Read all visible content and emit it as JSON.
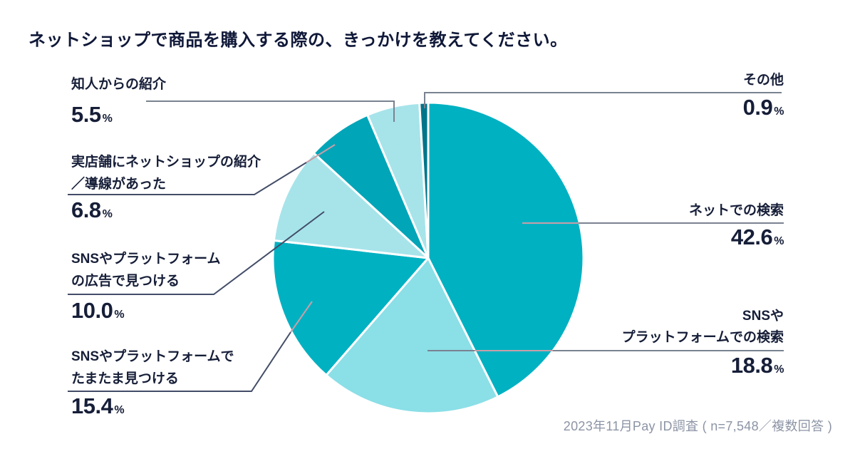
{
  "title": "ネットショップで商品を購入する際の、きっかけを教えてください。",
  "footer": "2023年11月Pay ID調査 ( n=7,548／複数回答 )",
  "chart_data": {
    "type": "pie",
    "title": "ネットショップで商品を購入する際の、きっかけを教えてください。",
    "unit": "%",
    "direction": "clockwise",
    "start_angle_deg": 0,
    "legend_position": "outside-callouts",
    "categories": [
      "ネットでの検索",
      "SNSやプラットフォームでの検索",
      "SNSやプラットフォームでたまたま見つける",
      "SNSやプラットフォームの広告で見つける",
      "実店舗にネットショップの紹介／導線があった",
      "知人からの紹介",
      "その他"
    ],
    "values": [
      42.6,
      18.8,
      15.4,
      10.0,
      6.8,
      5.5,
      0.9
    ],
    "colors": [
      "#00b1c2",
      "#8bdfe7",
      "#00b1c2",
      "#a6e4ea",
      "#00a5b8",
      "#a6e4ea",
      "#00758a"
    ],
    "slice_border_color": "#ffffff",
    "leader_line_colors": {
      "outside": "#7a8290",
      "outside_dark": "#434d68",
      "inside_pie": "#c79fa8"
    },
    "source": "2023年11月Pay ID調査 ( n=7,548／複数回答 )"
  },
  "callouts": {
    "net_search": {
      "line1": "ネットでの検索",
      "value": "42.6"
    },
    "sns_platform_search": {
      "line1": "SNSや",
      "line2": "プラットフォームでの検索",
      "value": "18.8"
    },
    "sns_platform_stumble": {
      "line1": "SNSやプラットフォームで",
      "line2": "たまたま見つける",
      "value": "15.4"
    },
    "sns_platform_ads": {
      "line1": "SNSやプラットフォーム",
      "line2": "の広告で見つける",
      "value": "10.0"
    },
    "store_referral": {
      "line1": "実店舗にネットショップの紹介",
      "line2": "／導線があった",
      "value": "6.8"
    },
    "friend_referral": {
      "line1": "知人からの紹介",
      "value": "5.5"
    },
    "other": {
      "line1": "その他",
      "value": "0.9"
    }
  }
}
